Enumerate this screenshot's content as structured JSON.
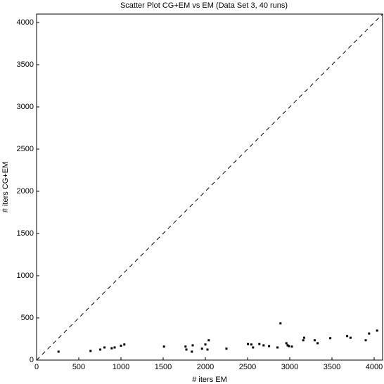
{
  "chart_data": {
    "type": "scatter",
    "title": "Scatter Plot CG+EM vs  EM (Data Set 3, 40 runs)",
    "x_label": "# iters EM",
    "y_label": "# iters CG+EM",
    "color": "#000000",
    "series": [
      {
        "x": [
          260,
          640,
          755,
          805,
          890,
          925,
          1040,
          1510,
          1765,
          1775,
          1850,
          1840,
          1960,
          2000,
          2025,
          2040,
          2250,
          2505,
          2545,
          2565,
          2640,
          2690,
          2755,
          2855,
          2890,
          2960,
          2975,
          2990,
          3025,
          3160,
          3170,
          3295,
          3330,
          3480,
          3680,
          3720,
          3900,
          3940,
          4035,
          1000
        ],
        "values": [
          100,
          108,
          125,
          150,
          140,
          150,
          185,
          160,
          160,
          125,
          175,
          100,
          135,
          185,
          125,
          235,
          135,
          190,
          185,
          150,
          190,
          175,
          165,
          150,
          435,
          200,
          175,
          165,
          160,
          235,
          265,
          235,
          200,
          260,
          285,
          265,
          235,
          315,
          350,
          170
        ]
      }
    ],
    "xlim": [
      0,
      4100
    ],
    "ylim": [
      0,
      4100
    ],
    "xticks": [
      0,
      500,
      1000,
      1500,
      2000,
      2500,
      3000,
      3500,
      4000
    ],
    "yticks": [
      0,
      500,
      1000,
      1500,
      2000,
      2500,
      3000,
      3500,
      4000
    ],
    "diagonal": true
  }
}
